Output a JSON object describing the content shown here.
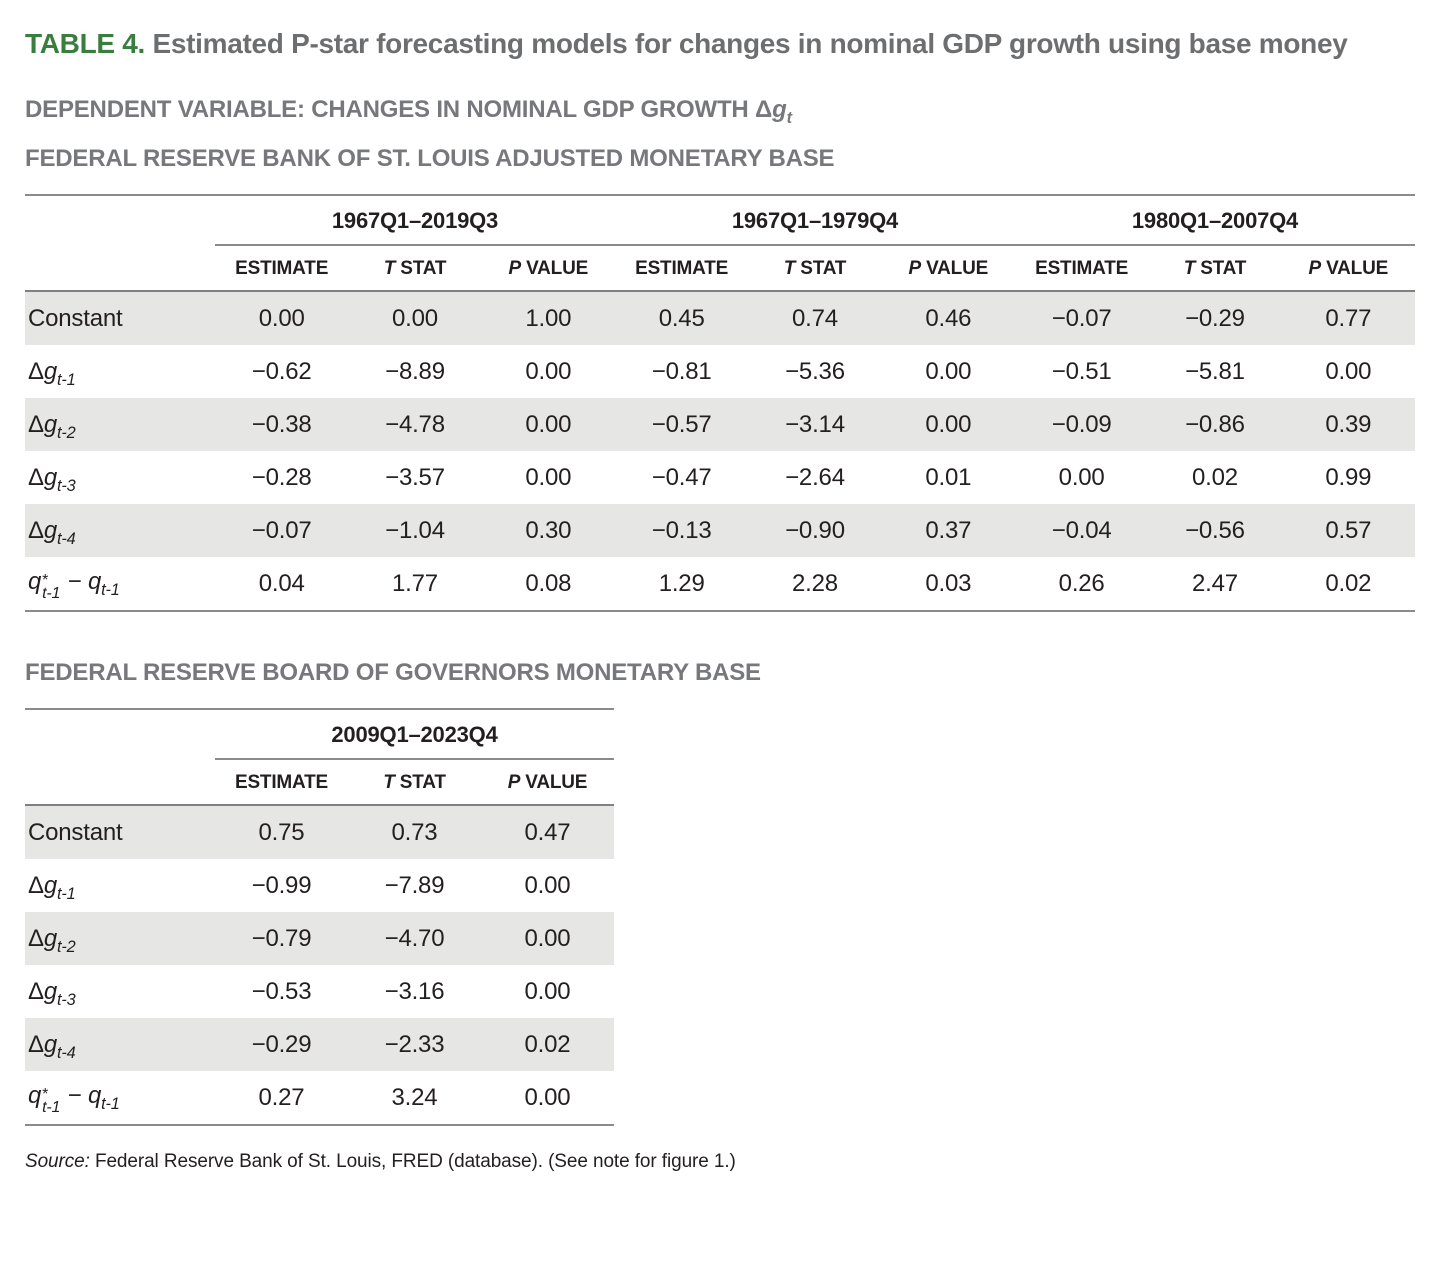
{
  "title": {
    "label": "TABLE 4.",
    "text": "Estimated P-star forecasting models for changes in nominal GDP growth using base money"
  },
  "headings": {
    "dependent_text": "DEPENDENT VARIABLE: CHANGES IN NOMINAL GDP GROWTH ",
    "dependent_math": [
      {
        "t": "Δ"
      },
      {
        "t": "g",
        "i": true
      },
      {
        "t": "t",
        "sub": true,
        "i": true
      }
    ]
  },
  "colors": {
    "accent_green": "#377e3f",
    "heading_gray": "#6d6e70",
    "row_shade": "#e6e6e4",
    "rule_gray": "#898b8d",
    "text_dark": "#231f20"
  },
  "tables": [
    {
      "section_heading": "FEDERAL RESERVE BANK OF ST. LOUIS ADJUSTED MONETARY BASE",
      "groups": [
        {
          "period": "1967Q1–2019Q3",
          "columns": [
            [
              {
                "t": "ESTIMATE"
              }
            ],
            [
              {
                "t": "T",
                "i": true
              },
              {
                "t": " STAT"
              }
            ],
            [
              {
                "t": "P",
                "i": true
              },
              {
                "t": " VALUE"
              }
            ]
          ]
        },
        {
          "period": "1967Q1–1979Q4",
          "columns": [
            [
              {
                "t": "ESTIMATE"
              }
            ],
            [
              {
                "t": "T",
                "i": true
              },
              {
                "t": " STAT"
              }
            ],
            [
              {
                "t": "P",
                "i": true
              },
              {
                "t": " VALUE"
              }
            ]
          ]
        },
        {
          "period": "1980Q1–2007Q4",
          "columns": [
            [
              {
                "t": "ESTIMATE"
              }
            ],
            [
              {
                "t": "T",
                "i": true
              },
              {
                "t": " STAT"
              }
            ],
            [
              {
                "t": "P",
                "i": true
              },
              {
                "t": " VALUE"
              }
            ]
          ]
        }
      ],
      "rows": [
        {
          "label": [
            {
              "t": "Constant"
            }
          ],
          "values": [
            "0.00",
            "0.00",
            "1.00",
            "0.45",
            "0.74",
            "0.46",
            "−0.07",
            "−0.29",
            "0.77"
          ]
        },
        {
          "label": [
            {
              "t": "Δ"
            },
            {
              "t": "g",
              "i": true
            },
            {
              "t": "t-1",
              "sub": true,
              "i": true
            }
          ],
          "values": [
            "−0.62",
            "−8.89",
            "0.00",
            "−0.81",
            "−5.36",
            "0.00",
            "−0.51",
            "−5.81",
            "0.00"
          ]
        },
        {
          "label": [
            {
              "t": "Δ"
            },
            {
              "t": "g",
              "i": true
            },
            {
              "t": "t-2",
              "sub": true,
              "i": true
            }
          ],
          "values": [
            "−0.38",
            "−4.78",
            "0.00",
            "−0.57",
            "−3.14",
            "0.00",
            "−0.09",
            "−0.86",
            "0.39"
          ]
        },
        {
          "label": [
            {
              "t": "Δ"
            },
            {
              "t": "g",
              "i": true
            },
            {
              "t": "t-3",
              "sub": true,
              "i": true
            }
          ],
          "values": [
            "−0.28",
            "−3.57",
            "0.00",
            "−0.47",
            "−2.64",
            "0.01",
            "0.00",
            "0.02",
            "0.99"
          ]
        },
        {
          "label": [
            {
              "t": "Δ"
            },
            {
              "t": "g",
              "i": true
            },
            {
              "t": "t-4",
              "sub": true,
              "i": true
            }
          ],
          "values": [
            "−0.07",
            "−1.04",
            "0.30",
            "−0.13",
            "−0.90",
            "0.37",
            "−0.04",
            "−0.56",
            "0.57"
          ]
        },
        {
          "label": [
            {
              "t": "q",
              "i": true
            },
            {
              "stack": {
                "sup": "*",
                "sub": "t-1"
              }
            },
            {
              "t": " − "
            },
            {
              "t": "q",
              "i": true
            },
            {
              "t": "t-1",
              "sub": true,
              "i": true
            }
          ],
          "values": [
            "0.04",
            "1.77",
            "0.08",
            "1.29",
            "2.28",
            "0.03",
            "0.26",
            "2.47",
            "0.02"
          ]
        }
      ]
    },
    {
      "section_heading": "FEDERAL RESERVE BOARD OF GOVERNORS MONETARY BASE",
      "groups": [
        {
          "period": "2009Q1–2023Q4",
          "columns": [
            [
              {
                "t": "ESTIMATE"
              }
            ],
            [
              {
                "t": "T",
                "i": true
              },
              {
                "t": " STAT"
              }
            ],
            [
              {
                "t": "P",
                "i": true
              },
              {
                "t": " VALUE"
              }
            ]
          ]
        }
      ],
      "rows": [
        {
          "label": [
            {
              "t": "Constant"
            }
          ],
          "values": [
            "0.75",
            "0.73",
            "0.47"
          ]
        },
        {
          "label": [
            {
              "t": "Δ"
            },
            {
              "t": "g",
              "i": true
            },
            {
              "t": "t-1",
              "sub": true,
              "i": true
            }
          ],
          "values": [
            "−0.99",
            "−7.89",
            "0.00"
          ]
        },
        {
          "label": [
            {
              "t": "Δ"
            },
            {
              "t": "g",
              "i": true
            },
            {
              "t": "t-2",
              "sub": true,
              "i": true
            }
          ],
          "values": [
            "−0.79",
            "−4.70",
            "0.00"
          ]
        },
        {
          "label": [
            {
              "t": "Δ"
            },
            {
              "t": "g",
              "i": true
            },
            {
              "t": "t-3",
              "sub": true,
              "i": true
            }
          ],
          "values": [
            "−0.53",
            "−3.16",
            "0.00"
          ]
        },
        {
          "label": [
            {
              "t": "Δ"
            },
            {
              "t": "g",
              "i": true
            },
            {
              "t": "t-4",
              "sub": true,
              "i": true
            }
          ],
          "values": [
            "−0.29",
            "−2.33",
            "0.02"
          ]
        },
        {
          "label": [
            {
              "t": "q",
              "i": true
            },
            {
              "stack": {
                "sup": "*",
                "sub": "t-1"
              }
            },
            {
              "t": " − "
            },
            {
              "t": "q",
              "i": true
            },
            {
              "t": "t-1",
              "sub": true,
              "i": true
            }
          ],
          "values": [
            "0.27",
            "3.24",
            "0.00"
          ]
        }
      ]
    }
  ],
  "source": {
    "label": "Source:",
    "text": " Federal Reserve Bank of St. Louis, FRED (database). (See note for figure 1.)"
  }
}
